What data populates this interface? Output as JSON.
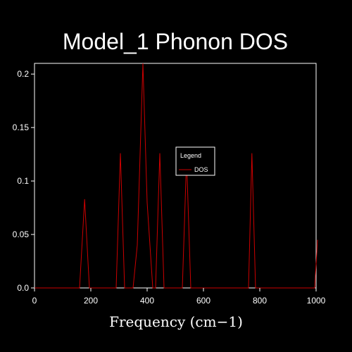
{
  "chart_data": {
    "type": "line",
    "title": "Model_1 Phonon DOS",
    "xlabel": "Frequency (cm−1)",
    "ylabel": "",
    "xlim": [
      0,
      1000
    ],
    "ylim": [
      0,
      0.21
    ],
    "xticks": [
      0,
      200,
      400,
      600,
      800,
      1000
    ],
    "xtick_labels": [
      "0",
      "200",
      "400",
      "600",
      "800",
      "1000"
    ],
    "yticks": [
      0.0,
      0.05,
      0.1,
      0.15,
      0.2
    ],
    "ytick_labels": [
      "0.0",
      "0.05",
      "0.1",
      "0.15",
      "0.2"
    ],
    "grid": false,
    "legend": {
      "title": "Legend",
      "placement": "center",
      "entries": [
        "DOS"
      ]
    },
    "series": [
      {
        "name": "DOS",
        "color": "#cc0000",
        "x": [
          0,
          160,
          178,
          195,
          290,
          305,
          320,
          350,
          365,
          385,
          400,
          420,
          430,
          445,
          460,
          525,
          540,
          555,
          760,
          772,
          785,
          995,
          1005
        ],
        "y": [
          0.0,
          0.0,
          0.083,
          0.0,
          0.0,
          0.126,
          0.0,
          0.0,
          0.04,
          0.21,
          0.08,
          0.0,
          0.0,
          0.126,
          0.0,
          0.0,
          0.121,
          0.0,
          0.0,
          0.126,
          0.0,
          0.0,
          0.045
        ]
      }
    ]
  }
}
